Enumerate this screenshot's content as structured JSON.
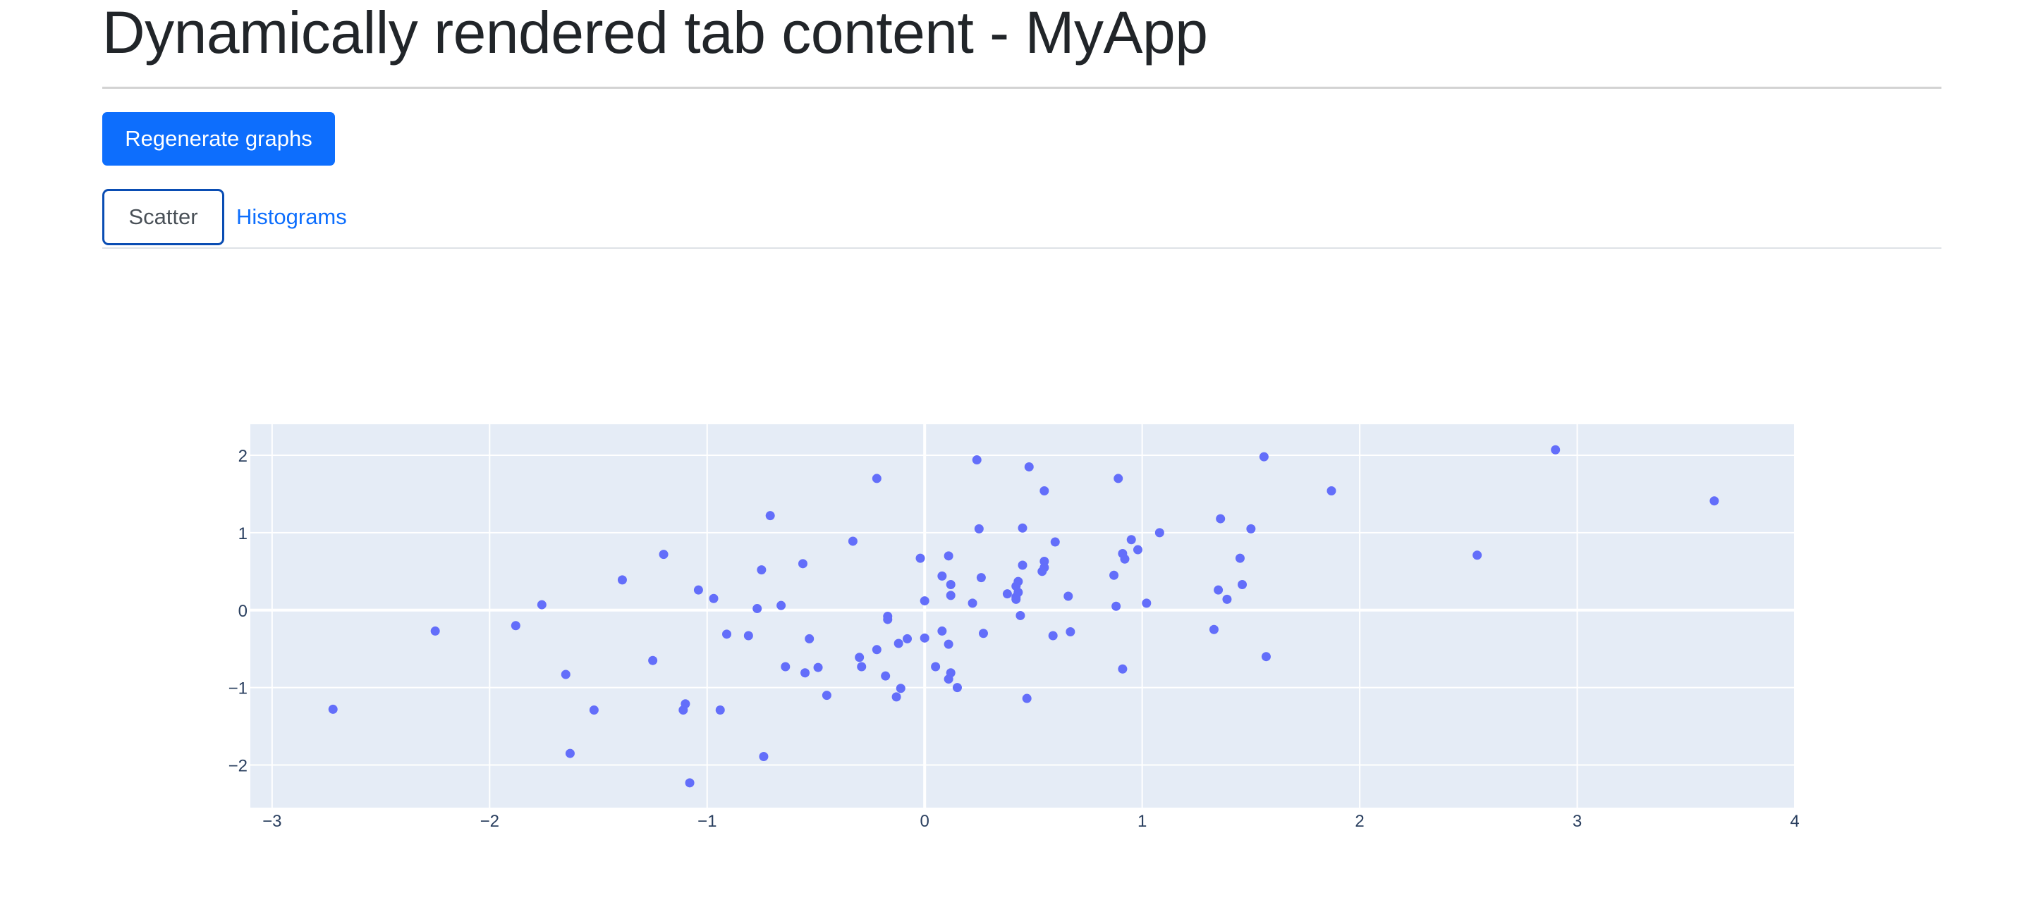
{
  "page": {
    "title": "Dynamically rendered tab content - MyApp"
  },
  "controls": {
    "regenerate_label": "Regenerate graphs"
  },
  "tabs": [
    {
      "label": "Scatter",
      "active": true
    },
    {
      "label": "Histograms",
      "active": false
    }
  ],
  "colors": {
    "accent": "#0d6efd",
    "plot_bg": "#e5ecf6",
    "marker": "#636efa",
    "grid": "#ffffff",
    "tick_text": "#2a3f5f"
  },
  "chart_data": {
    "type": "scatter",
    "title": "",
    "xlabel": "",
    "ylabel": "",
    "xlim": [
      -3.1,
      4.0
    ],
    "ylim": [
      -2.55,
      2.4
    ],
    "xticks": [
      -3,
      -2,
      -1,
      0,
      1,
      2,
      3,
      4
    ],
    "yticks": [
      -2,
      -1,
      0,
      1,
      2
    ],
    "grid": true,
    "series": [
      {
        "points": [
          [
            -2.72,
            -1.28
          ],
          [
            -2.25,
            -0.27
          ],
          [
            -1.88,
            -0.2
          ],
          [
            -1.76,
            0.07
          ],
          [
            -1.65,
            -0.83
          ],
          [
            -1.63,
            -1.85
          ],
          [
            -1.52,
            -1.29
          ],
          [
            -1.39,
            0.39
          ],
          [
            -1.25,
            -0.65
          ],
          [
            -1.2,
            0.72
          ],
          [
            -1.11,
            -1.29
          ],
          [
            -1.1,
            -1.21
          ],
          [
            -1.08,
            -2.23
          ],
          [
            -1.04,
            0.26
          ],
          [
            -0.97,
            0.15
          ],
          [
            -0.94,
            -1.29
          ],
          [
            -0.91,
            -0.31
          ],
          [
            -0.81,
            -0.33
          ],
          [
            -0.77,
            0.02
          ],
          [
            -0.75,
            0.52
          ],
          [
            -0.74,
            -1.89
          ],
          [
            -0.71,
            1.22
          ],
          [
            -0.66,
            0.06
          ],
          [
            -0.64,
            -0.73
          ],
          [
            -0.56,
            0.6
          ],
          [
            -0.55,
            -0.81
          ],
          [
            -0.53,
            -0.37
          ],
          [
            -0.49,
            -0.74
          ],
          [
            -0.45,
            -1.1
          ],
          [
            -0.33,
            0.89
          ],
          [
            -0.3,
            -0.61
          ],
          [
            -0.29,
            -0.73
          ],
          [
            -0.22,
            -0.51
          ],
          [
            -0.22,
            1.7
          ],
          [
            -0.18,
            -0.85
          ],
          [
            -0.17,
            -0.08
          ],
          [
            -0.17,
            -0.12
          ],
          [
            -0.13,
            -1.12
          ],
          [
            -0.12,
            -0.43
          ],
          [
            -0.11,
            -1.01
          ],
          [
            -0.08,
            -0.37
          ],
          [
            -0.02,
            0.67
          ],
          [
            0.0,
            -0.36
          ],
          [
            0.0,
            0.12
          ],
          [
            0.05,
            -0.73
          ],
          [
            0.08,
            -0.27
          ],
          [
            0.08,
            0.44
          ],
          [
            0.11,
            -0.44
          ],
          [
            0.11,
            -0.89
          ],
          [
            0.11,
            0.7
          ],
          [
            0.12,
            0.19
          ],
          [
            0.12,
            -0.81
          ],
          [
            0.12,
            0.33
          ],
          [
            0.15,
            -1.0
          ],
          [
            0.22,
            0.09
          ],
          [
            0.24,
            1.94
          ],
          [
            0.25,
            1.05
          ],
          [
            0.26,
            0.42
          ],
          [
            0.27,
            -0.3
          ],
          [
            0.38,
            0.21
          ],
          [
            0.42,
            0.31
          ],
          [
            0.42,
            0.17
          ],
          [
            0.42,
            0.14
          ],
          [
            0.43,
            0.23
          ],
          [
            0.43,
            0.37
          ],
          [
            0.44,
            -0.07
          ],
          [
            0.45,
            1.06
          ],
          [
            0.45,
            0.58
          ],
          [
            0.47,
            -1.14
          ],
          [
            0.48,
            1.85
          ],
          [
            0.54,
            0.5
          ],
          [
            0.55,
            1.54
          ],
          [
            0.55,
            0.63
          ],
          [
            0.55,
            0.55
          ],
          [
            0.59,
            -0.33
          ],
          [
            0.6,
            0.88
          ],
          [
            0.66,
            0.18
          ],
          [
            0.67,
            -0.28
          ],
          [
            0.87,
            0.45
          ],
          [
            0.88,
            0.05
          ],
          [
            0.89,
            1.7
          ],
          [
            0.91,
            0.73
          ],
          [
            0.91,
            -0.76
          ],
          [
            0.92,
            0.66
          ],
          [
            0.95,
            0.91
          ],
          [
            0.98,
            0.78
          ],
          [
            1.02,
            0.09
          ],
          [
            1.08,
            1.0
          ],
          [
            1.33,
            -0.25
          ],
          [
            1.35,
            0.26
          ],
          [
            1.36,
            1.18
          ],
          [
            1.39,
            0.14
          ],
          [
            1.45,
            0.67
          ],
          [
            1.46,
            0.33
          ],
          [
            1.5,
            1.05
          ],
          [
            1.56,
            1.98
          ],
          [
            1.57,
            -0.6
          ],
          [
            1.87,
            1.54
          ],
          [
            2.54,
            0.71
          ],
          [
            2.9,
            2.07
          ],
          [
            3.63,
            1.41
          ]
        ]
      }
    ]
  }
}
